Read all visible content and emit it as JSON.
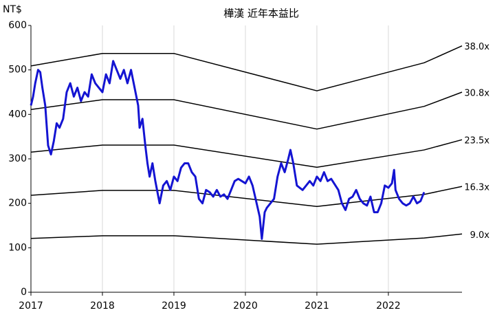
{
  "chart_data": {
    "type": "line",
    "title": "樺漢 近年本益比",
    "ylabel": "NT$",
    "xlim": [
      2017,
      2023.03
    ],
    "xticks": [
      2017,
      2018,
      2019,
      2020,
      2021,
      2022
    ],
    "ylim": [
      0,
      600
    ],
    "yticks": [
      0,
      100,
      200,
      300,
      400,
      500,
      600
    ],
    "grid": "x",
    "series": [
      {
        "color": "#1414d2",
        "x": [
          2017.0,
          2017.03,
          2017.06,
          2017.1,
          2017.13,
          2017.16,
          2017.2,
          2017.24,
          2017.28,
          2017.32,
          2017.36,
          2017.4,
          2017.45,
          2017.5,
          2017.55,
          2017.6,
          2017.65,
          2017.7,
          2017.75,
          2017.8,
          2017.85,
          2017.9,
          2017.95,
          2018.0,
          2018.05,
          2018.1,
          2018.15,
          2018.2,
          2018.25,
          2018.3,
          2018.35,
          2018.4,
          2018.45,
          2018.5,
          2018.52,
          2018.56,
          2018.6,
          2018.63,
          2018.66,
          2018.7,
          2018.74,
          2018.8,
          2018.85,
          2018.9,
          2018.95,
          2019.0,
          2019.05,
          2019.1,
          2019.15,
          2019.2,
          2019.25,
          2019.3,
          2019.35,
          2019.4,
          2019.45,
          2019.5,
          2019.55,
          2019.6,
          2019.65,
          2019.7,
          2019.75,
          2019.8,
          2019.85,
          2019.9,
          2019.95,
          2020.0,
          2020.05,
          2020.1,
          2020.15,
          2020.2,
          2020.23,
          2020.27,
          2020.3,
          2020.35,
          2020.4,
          2020.45,
          2020.5,
          2020.55,
          2020.6,
          2020.63,
          2020.67,
          2020.72,
          2020.8,
          2020.85,
          2020.9,
          2020.95,
          2021.0,
          2021.05,
          2021.1,
          2021.15,
          2021.2,
          2021.3,
          2021.35,
          2021.4,
          2021.45,
          2021.5,
          2021.55,
          2021.6,
          2021.65,
          2021.7,
          2021.75,
          2021.8,
          2021.85,
          2021.9,
          2021.95,
          2022.0,
          2022.05,
          2022.08,
          2022.1,
          2022.15,
          2022.2,
          2022.25,
          2022.3,
          2022.35,
          2022.4,
          2022.45,
          2022.5
        ],
        "values": [
          420,
          440,
          470,
          500,
          495,
          460,
          420,
          330,
          310,
          340,
          380,
          370,
          390,
          450,
          470,
          440,
          460,
          430,
          450,
          440,
          490,
          470,
          460,
          450,
          490,
          470,
          520,
          500,
          480,
          500,
          470,
          500,
          460,
          420,
          370,
          390,
          330,
          290,
          260,
          290,
          250,
          200,
          240,
          250,
          230,
          260,
          250,
          280,
          290,
          290,
          270,
          260,
          210,
          200,
          230,
          225,
          215,
          230,
          215,
          220,
          210,
          230,
          250,
          255,
          250,
          245,
          260,
          240,
          205,
          170,
          120,
          180,
          190,
          200,
          210,
          260,
          290,
          270,
          300,
          320,
          290,
          240,
          230,
          240,
          250,
          240,
          260,
          250,
          270,
          250,
          255,
          230,
          200,
          185,
          210,
          215,
          230,
          210,
          200,
          195,
          215,
          180,
          180,
          200,
          240,
          235,
          245,
          275,
          230,
          210,
          200,
          195,
          200,
          215,
          200,
          205,
          225
        ]
      },
      {
        "name": "38.0x",
        "color": "#000000",
        "x": [
          2017,
          2018,
          2019,
          2021,
          2022.5,
          2023.03
        ],
        "values": [
          509,
          537,
          537,
          453,
          516,
          554
        ]
      },
      {
        "name": "30.8x",
        "color": "#000000",
        "x": [
          2017,
          2018,
          2019,
          2021,
          2022.5,
          2023.03
        ],
        "values": [
          411,
          433,
          433,
          367,
          418,
          450
        ]
      },
      {
        "name": "23.5x",
        "color": "#000000",
        "x": [
          2017,
          2018,
          2019,
          2021,
          2022.5,
          2023.03
        ],
        "values": [
          315,
          331,
          331,
          281,
          320,
          343
        ]
      },
      {
        "name": "16.3x",
        "color": "#000000",
        "x": [
          2017,
          2018,
          2019,
          2021,
          2022.5,
          2023.03
        ],
        "values": [
          218,
          229,
          229,
          193,
          220,
          238
        ]
      },
      {
        "name": "9.0x",
        "color": "#000000",
        "x": [
          2017,
          2018,
          2019,
          2021,
          2022.5,
          2023.03
        ],
        "values": [
          121,
          127,
          127,
          108,
          122,
          131
        ]
      }
    ]
  }
}
